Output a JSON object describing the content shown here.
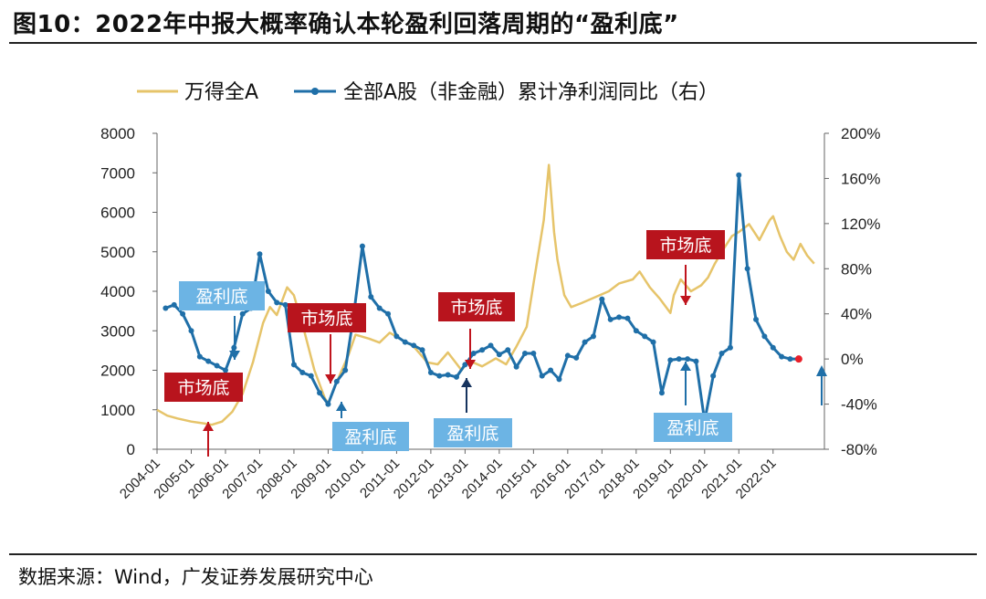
{
  "header": {
    "title": "图10：2022年中报大概率确认本轮盈利回落周期的“盈利底”"
  },
  "footer": {
    "source": "数据来源：Wind，广发证券发展研究中心"
  },
  "chart_data": {
    "type": "line",
    "title": "图10：2022年中报大概率确认本轮盈利回落周期的“盈利底”",
    "colors": {
      "index": "#e6c46a",
      "profit": "#1f6fa8",
      "red_box": "#b8141d",
      "blue_box": "#6cb4e4",
      "red_arrow": "#c0141d",
      "blue_arrow": "#1f6fa8",
      "last_point": "#e8202a"
    },
    "legend": [
      {
        "name": "万得全A",
        "axis": "left"
      },
      {
        "name": "全部A股（非金融）累计净利润同比（右）",
        "axis": "right"
      }
    ],
    "left_axis": {
      "min": 0,
      "max": 8000,
      "ticks": [
        "8000",
        "7000",
        "6000",
        "5000",
        "4000",
        "3000",
        "2000",
        "1000",
        "0"
      ]
    },
    "right_axis": {
      "min": -80,
      "max": 200,
      "unit": "%",
      "ticks": [
        "200%",
        "160%",
        "120%",
        "80%",
        "40%",
        "0%",
        "-40%",
        "-80%"
      ]
    },
    "x_axis": {
      "start": 2004.0,
      "end": 2023.5,
      "ticks": [
        "2004-01",
        "2005-01",
        "2006-01",
        "2007-01",
        "2008-01",
        "2009-01",
        "2010-01",
        "2011-01",
        "2012-01",
        "2013-01",
        "2014-01",
        "2015-01",
        "2016-01",
        "2017-01",
        "2018-01",
        "2019-01",
        "2020-01",
        "2021-01",
        "2022-01"
      ]
    },
    "series": [
      {
        "name": "万得全A",
        "axis": "left",
        "x": [
          2004.0,
          2004.3,
          2004.6,
          2005.0,
          2005.4,
          2005.6,
          2005.9,
          2006.2,
          2006.5,
          2006.8,
          2007.1,
          2007.3,
          2007.5,
          2007.8,
          2008.0,
          2008.3,
          2008.6,
          2008.9,
          2009.0,
          2009.2,
          2009.6,
          2009.8,
          2010.2,
          2010.5,
          2010.8,
          2011.2,
          2011.5,
          2011.9,
          2012.2,
          2012.5,
          2012.9,
          2013.1,
          2013.5,
          2013.9,
          2014.2,
          2014.5,
          2014.8,
          2015.0,
          2015.3,
          2015.45,
          2015.6,
          2015.7,
          2015.9,
          2016.1,
          2016.4,
          2016.8,
          2017.2,
          2017.5,
          2017.9,
          2018.1,
          2018.4,
          2018.7,
          2019.0,
          2019.1,
          2019.3,
          2019.6,
          2019.9,
          2020.1,
          2020.3,
          2020.5,
          2020.8,
          2021.0,
          2021.3,
          2021.6,
          2021.9,
          2022.0,
          2022.2,
          2022.4,
          2022.6,
          2022.8,
          2023.0,
          2023.2
        ],
        "values": [
          1000,
          850,
          780,
          700,
          650,
          620,
          700,
          950,
          1400,
          2200,
          3200,
          3600,
          3400,
          4100,
          3900,
          3000,
          2000,
          1300,
          1150,
          1600,
          2400,
          2900,
          2800,
          2700,
          2950,
          2750,
          2600,
          2200,
          2150,
          2450,
          2000,
          2250,
          2100,
          2300,
          2150,
          2600,
          3100,
          4200,
          5800,
          7200,
          5500,
          4800,
          3900,
          3600,
          3700,
          3850,
          4000,
          4200,
          4300,
          4500,
          4100,
          3800,
          3450,
          3900,
          4300,
          4000,
          4150,
          4350,
          4700,
          5000,
          5400,
          5500,
          5700,
          5300,
          5800,
          5900,
          5400,
          5000,
          4800,
          5200,
          4900,
          4700
        ]
      },
      {
        "name": "全部A股（非金融）累计净利润同比（右）",
        "axis": "right",
        "x": [
          2004.25,
          2004.5,
          2004.75,
          2005.0,
          2005.25,
          2005.5,
          2005.75,
          2006.0,
          2006.25,
          2006.5,
          2006.75,
          2007.0,
          2007.25,
          2007.5,
          2007.75,
          2008.0,
          2008.25,
          2008.5,
          2008.75,
          2009.0,
          2009.25,
          2009.5,
          2009.75,
          2010.0,
          2010.25,
          2010.5,
          2010.75,
          2011.0,
          2011.25,
          2011.5,
          2011.75,
          2012.0,
          2012.25,
          2012.5,
          2012.75,
          2013.0,
          2013.25,
          2013.5,
          2013.75,
          2014.0,
          2014.25,
          2014.5,
          2014.75,
          2015.0,
          2015.25,
          2015.5,
          2015.75,
          2016.0,
          2016.25,
          2016.5,
          2016.75,
          2017.0,
          2017.25,
          2017.5,
          2017.75,
          2018.0,
          2018.25,
          2018.5,
          2018.75,
          2019.0,
          2019.25,
          2019.5,
          2019.75,
          2020.0,
          2020.25,
          2020.5,
          2020.75,
          2021.0,
          2021.25,
          2021.5,
          2021.75,
          2022.0,
          2022.25,
          2022.5,
          2022.75
        ],
        "values": [
          45,
          48,
          40,
          25,
          2,
          -2,
          -6,
          -10,
          10,
          40,
          45,
          93,
          60,
          50,
          48,
          -5,
          -12,
          -15,
          -30,
          -40,
          -20,
          -10,
          40,
          100,
          55,
          45,
          40,
          20,
          15,
          12,
          8,
          -12,
          -15,
          -14,
          -16,
          -5,
          5,
          8,
          12,
          4,
          8,
          -7,
          5,
          5,
          -15,
          -10,
          -18,
          3,
          1,
          15,
          20,
          53,
          35,
          37,
          36,
          25,
          20,
          15,
          -30,
          -1,
          0,
          0,
          -2,
          -55,
          -15,
          5,
          10,
          163,
          80,
          35,
          20,
          10,
          2,
          0,
          0
        ]
      }
    ],
    "last_point": {
      "axis": "right",
      "x": 2022.75,
      "value": 0
    },
    "annotations": [
      {
        "text": "盈利底",
        "style": "blue",
        "arrow": "down"
      },
      {
        "text": "市场底",
        "style": "red",
        "arrow": "up"
      },
      {
        "text": "市场底",
        "style": "red",
        "arrow": "down"
      },
      {
        "text": "盈利底",
        "style": "blue",
        "arrow": "up"
      },
      {
        "text": "市场底",
        "style": "red",
        "arrow": "down"
      },
      {
        "text": "盈利底",
        "style": "blue",
        "arrow": "up"
      },
      {
        "text": "市场底",
        "style": "red",
        "arrow": "down"
      },
      {
        "text": "盈利底",
        "style": "blue",
        "arrow": "up"
      }
    ]
  }
}
